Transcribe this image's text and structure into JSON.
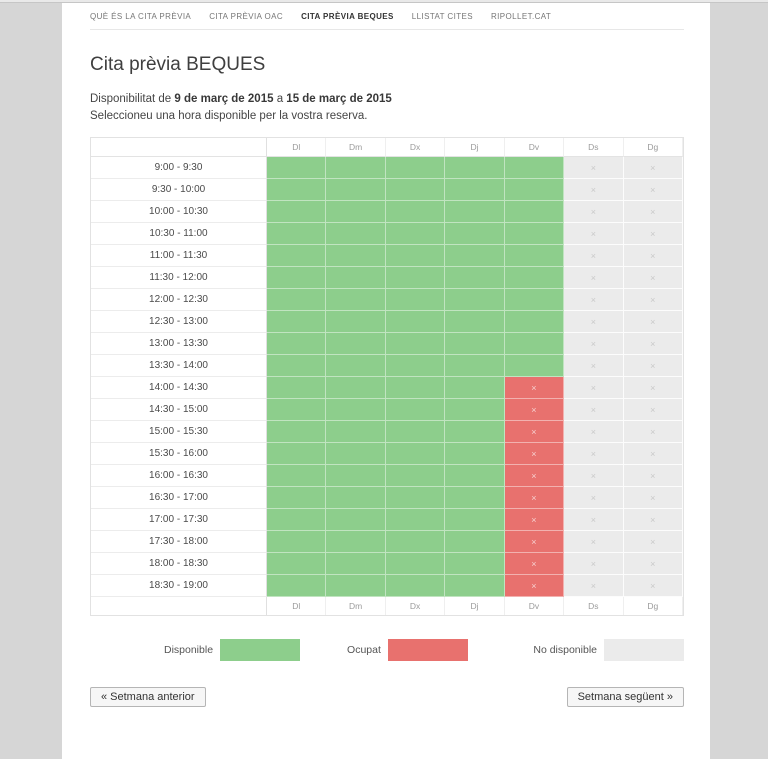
{
  "nav": {
    "items": [
      {
        "label": "QUÈ ÉS LA CITA PRÈVIA",
        "active": false
      },
      {
        "label": "CITA PRÈVIA OAC",
        "active": false
      },
      {
        "label": "CITA PRÈVIA BEQUES",
        "active": true
      },
      {
        "label": "LLISTAT CITES",
        "active": false
      },
      {
        "label": "RIPOLLET.CAT",
        "active": false
      }
    ]
  },
  "page": {
    "title": "Cita prèvia BEQUES",
    "availability": {
      "prefix": "Disponibilitat de",
      "date_from": "9 de març de 2015",
      "connector": "a",
      "date_to": "15 de març de 2015"
    },
    "instructions": "Seleccioneu una hora disponible per la vostra reserva."
  },
  "calendar": {
    "day_headers": [
      "Dl",
      "Dm",
      "Dx",
      "Dj",
      "Dv",
      "Ds",
      "Dg"
    ],
    "time_slots": [
      "9:00 - 9:30",
      "9:30 - 10:00",
      "10:00 - 10:30",
      "10:30 - 11:00",
      "11:00 - 11:30",
      "11:30 - 12:00",
      "12:00 - 12:30",
      "12:30 - 13:00",
      "13:00 - 13:30",
      "13:30 - 14:00",
      "14:00 - 14:30",
      "14:30 - 15:00",
      "15:00 - 15:30",
      "15:30 - 16:00",
      "16:00 - 16:30",
      "16:30 - 17:00",
      "17:00 - 17:30",
      "17:30 - 18:00",
      "18:00 - 18:30",
      "18:30 - 19:00"
    ],
    "row_patterns": {
      "morning": [
        "available",
        "available",
        "available",
        "available",
        "available",
        "unavailable",
        "unavailable"
      ],
      "afternoon": [
        "available",
        "available",
        "available",
        "available",
        "occupied",
        "unavailable",
        "unavailable"
      ]
    },
    "rows": [
      "morning",
      "morning",
      "morning",
      "morning",
      "morning",
      "morning",
      "morning",
      "morning",
      "morning",
      "morning",
      "afternoon",
      "afternoon",
      "afternoon",
      "afternoon",
      "afternoon",
      "afternoon",
      "afternoon",
      "afternoon",
      "afternoon",
      "afternoon"
    ],
    "mark_symbol": "×",
    "state_colors": {
      "available": "#8dce8c",
      "occupied": "#e8716e",
      "unavailable": "#ebebeb"
    },
    "mark_colors": {
      "occupied": "#f6cfce",
      "unavailable": "#c9c9c9"
    }
  },
  "legend": {
    "items": [
      {
        "label": "Disponible",
        "state": "available"
      },
      {
        "label": "Ocupat",
        "state": "occupied"
      },
      {
        "label": "No disponible",
        "state": "unavailable"
      }
    ]
  },
  "pagination": {
    "prev_label": "« Setmana anterior",
    "next_label": "Setmana següent »"
  }
}
